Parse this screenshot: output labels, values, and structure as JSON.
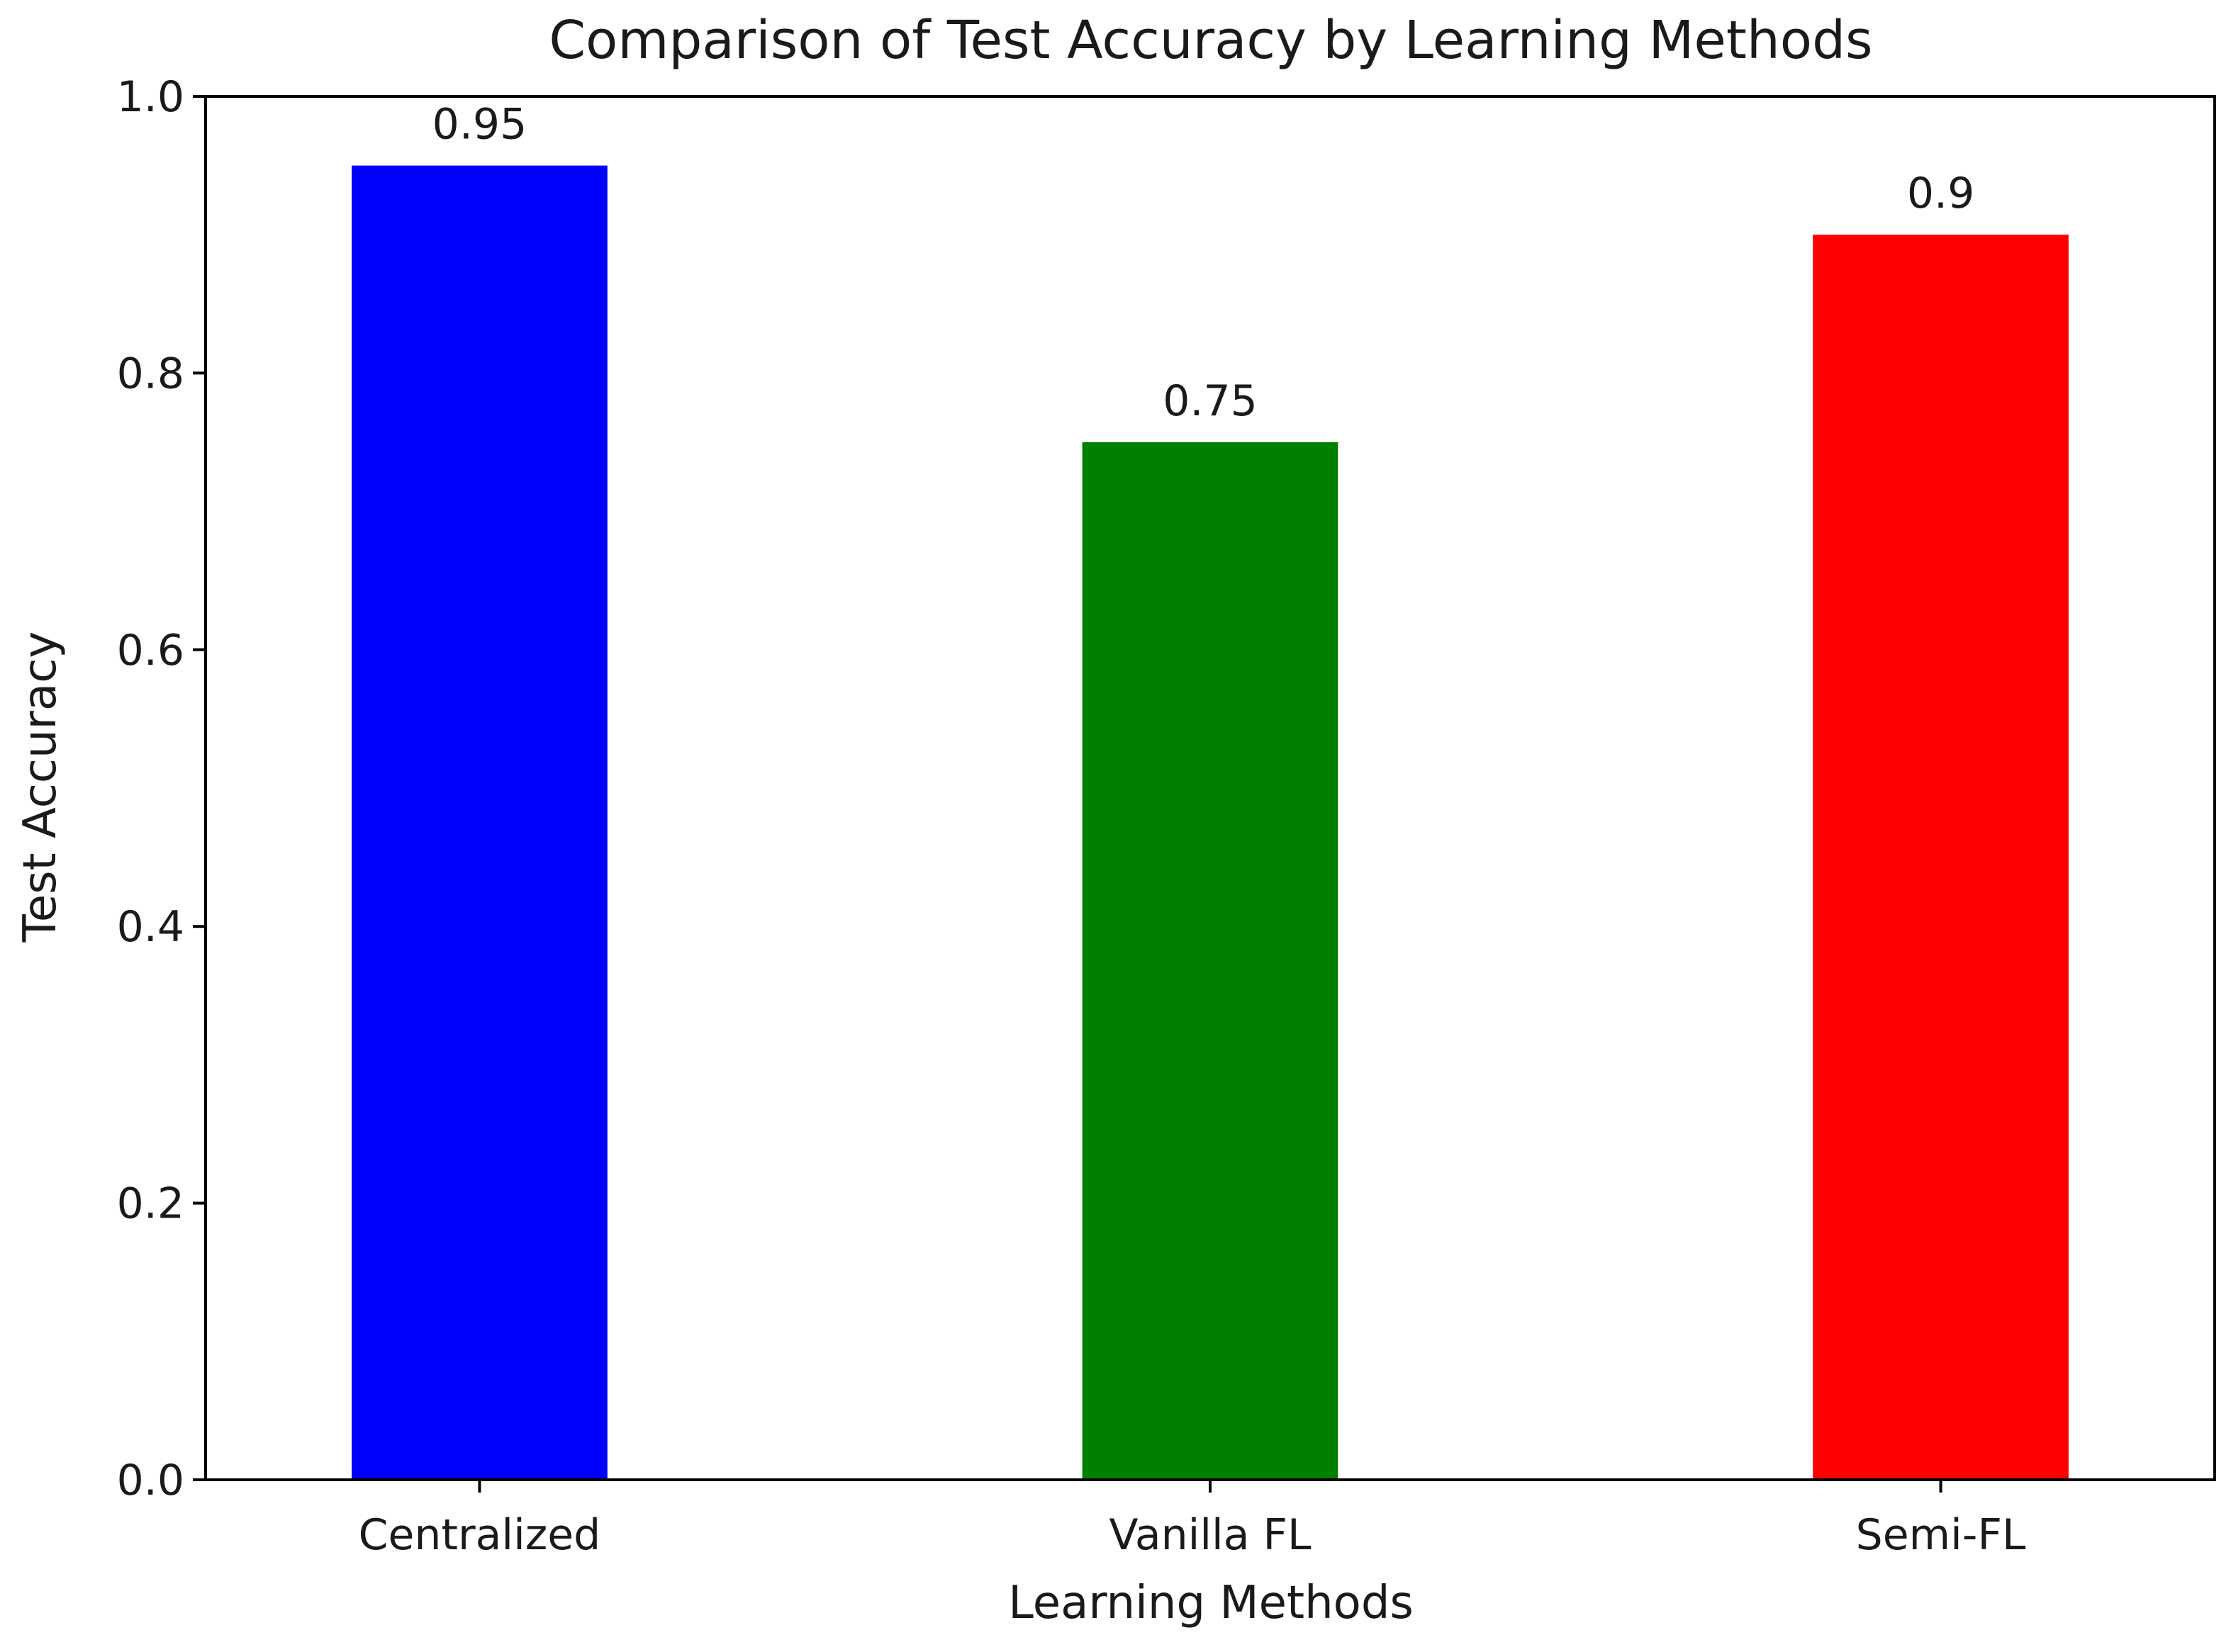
{
  "chart_data": {
    "type": "bar",
    "title": "Comparison of Test Accuracy by Learning Methods",
    "xlabel": "Learning Methods",
    "ylabel": "Test Accuracy",
    "categories": [
      "Centralized",
      "Vanilla FL",
      "Semi-FL"
    ],
    "values": [
      0.95,
      0.75,
      0.9
    ],
    "value_labels": [
      "0.95",
      "0.75",
      "0.9"
    ],
    "colors": [
      "#0000ff",
      "#008000",
      "#ff0000"
    ],
    "ylim": [
      0,
      1
    ],
    "yticks": [
      0.0,
      0.2,
      0.4,
      0.6,
      0.8,
      1.0
    ],
    "ytick_labels": [
      "0.0",
      "0.2",
      "0.4",
      "0.6",
      "0.8",
      "1.0"
    ],
    "grid": false,
    "legend": "none"
  }
}
